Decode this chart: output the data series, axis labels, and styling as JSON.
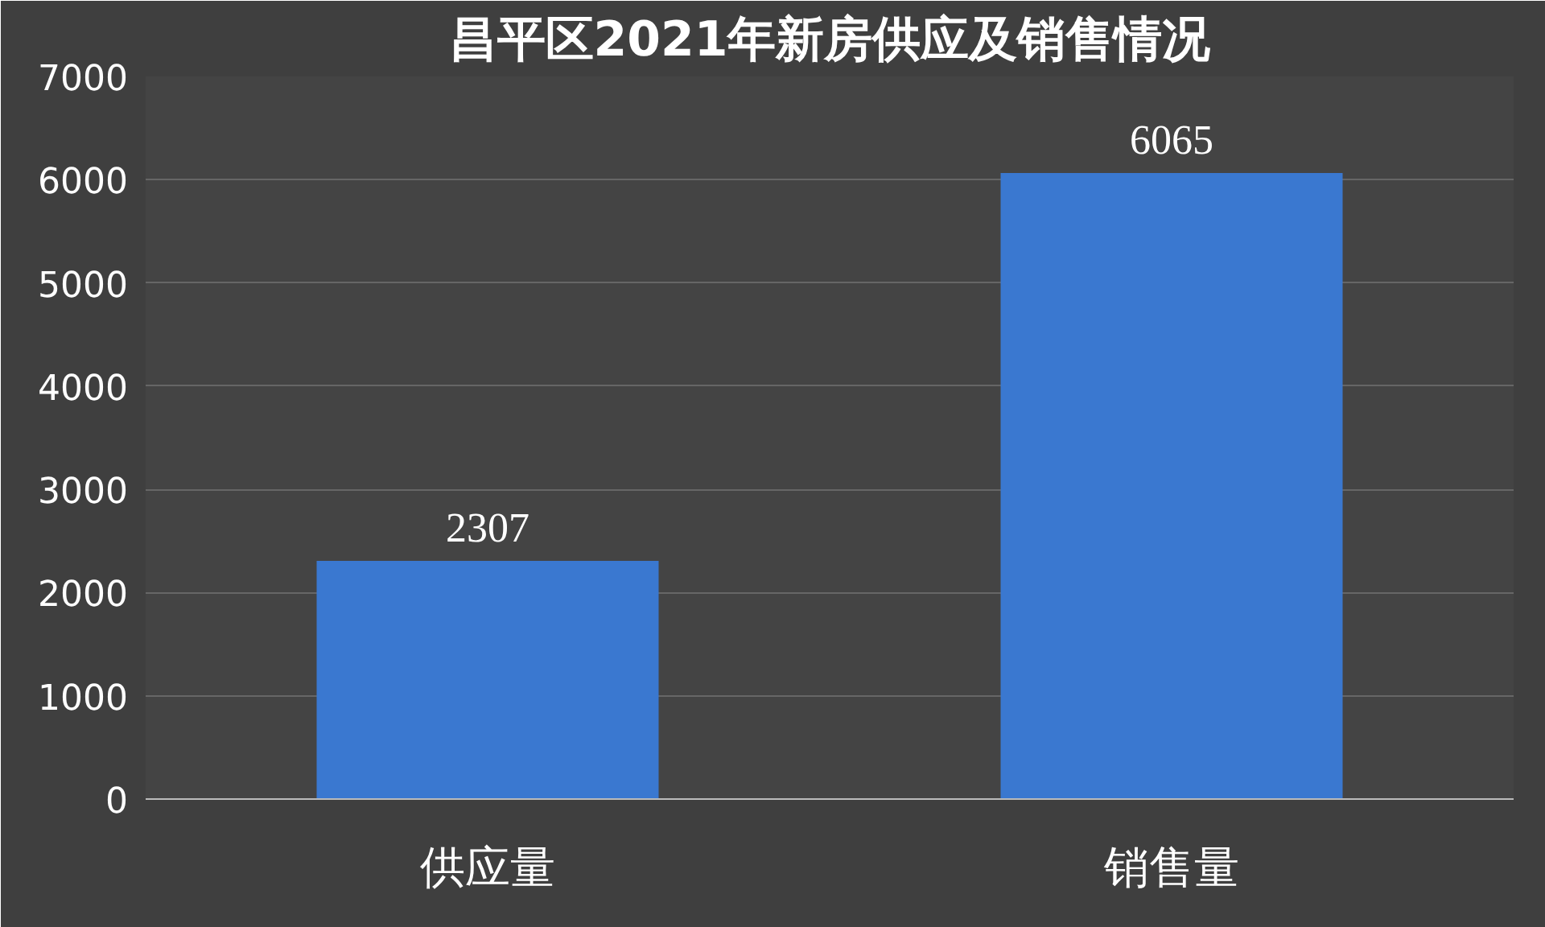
{
  "chart_data": {
    "type": "bar",
    "title": "昌平区2021年新房供应及销售情况",
    "categories": [
      "供应量",
      "销售量"
    ],
    "values": [
      2307,
      6065
    ],
    "color": "#3a78d0",
    "ylim": [
      0,
      7000
    ],
    "yticks": [
      0,
      1000,
      2000,
      3000,
      4000,
      5000,
      6000,
      7000
    ],
    "grid": "y",
    "data_labels": true
  }
}
